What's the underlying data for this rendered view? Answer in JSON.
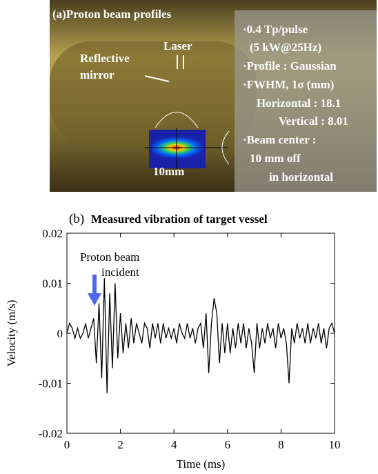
{
  "panel_a": {
    "title": "(a)Proton beam profiles",
    "mirror": [
      "Reflective",
      "mirror"
    ],
    "laser": "Laser",
    "scale": "10mm",
    "info": [
      "·0.4 Tp/pulse",
      "(5 kW@25Hz)",
      "·Profile : Gaussian",
      "·FWHM, 1σ (mm)",
      "Horizontal : 18.1",
      "Vertical : 8.01",
      "·Beam center :",
      "10 mm off",
      "in horizontal"
    ]
  },
  "chart_data": {
    "type": "line",
    "panel_label": "(b)",
    "title": "Measured vibration of target vessel",
    "annotation": [
      "Proton beam",
      "incident"
    ],
    "x_label": "Time (ms)",
    "y_label": "Velocity (m/s)",
    "x": [
      0,
      0.1,
      0.2,
      0.3,
      0.4,
      0.5,
      0.6,
      0.7,
      0.8,
      0.9,
      1,
      1.1,
      1.2,
      1.3,
      1.4,
      1.5,
      1.6,
      1.7,
      1.8,
      1.9,
      2,
      2.1,
      2.2,
      2.3,
      2.4,
      2.5,
      2.6,
      2.7,
      2.8,
      2.9,
      3,
      3.1,
      3.2,
      3.3,
      3.4,
      3.5,
      3.6,
      3.7,
      3.8,
      3.9,
      4,
      4.1,
      4.2,
      4.3,
      4.4,
      4.5,
      4.6,
      4.7,
      4.8,
      4.9,
      5,
      5.1,
      5.2,
      5.3,
      5.4,
      5.5,
      5.6,
      5.7,
      5.8,
      5.9,
      6,
      6.1,
      6.2,
      6.3,
      6.4,
      6.5,
      6.6,
      6.7,
      6.8,
      6.9,
      7,
      7.1,
      7.2,
      7.3,
      7.4,
      7.5,
      7.6,
      7.7,
      7.8,
      7.9,
      8,
      8.1,
      8.2,
      8.3,
      8.4,
      8.5,
      8.6,
      8.7,
      8.8,
      8.9,
      9,
      9.1,
      9.2,
      9.3,
      9.4,
      9.5,
      9.6,
      9.7,
      9.8,
      9.9,
      10
    ],
    "values": [
      0,
      0.002,
      0.001,
      -0.001,
      0.001,
      -0.001,
      0,
      0.002,
      -0.001,
      0.001,
      0.003,
      -0.006,
      0.006,
      -0.009,
      0.011,
      -0.012,
      0.008,
      -0.007,
      0.01,
      -0.005,
      0.004,
      -0.004,
      0.002,
      -0.003,
      0.003,
      -0.002,
      0.002,
      0,
      -0.002,
      0.002,
      0.001,
      -0.003,
      0.002,
      -0.001,
      0.002,
      -0.002,
      0.002,
      -0.001,
      0.001,
      -0.001,
      0.001,
      -0.002,
      0.002,
      0,
      -0.001,
      0.002,
      -0.001,
      0.001,
      -0.002,
      0.001,
      0.002,
      -0.003,
      0.004,
      -0.008,
      0.002,
      0.007,
      0.004,
      -0.006,
      0.002,
      -0.004,
      0.002,
      -0.004,
      0.001,
      -0.003,
      0.002,
      -0.002,
      0.002,
      -0.003,
      0.001,
      -0.002,
      -0.008,
      0.002,
      -0.003,
      0.001,
      -0.002,
      0.002,
      -0.001,
      0.001,
      -0.003,
      0.002,
      -0.001,
      0.001,
      -0.002,
      -0.01,
      0.001,
      -0.002,
      0.002,
      -0.001,
      0.001,
      -0.002,
      0.002,
      -0.002,
      0.001,
      -0.001,
      0.002,
      -0.002,
      0.001,
      -0.003,
      0.001,
      0.002,
      0
    ],
    "color": "#000000",
    "xlim": [
      0,
      10
    ],
    "xticks": [
      0,
      2,
      4,
      6,
      8,
      10
    ],
    "ylim": [
      -0.02,
      0.02
    ],
    "yticks": [
      -0.02,
      -0.01,
      0,
      0.01,
      0.02
    ]
  }
}
